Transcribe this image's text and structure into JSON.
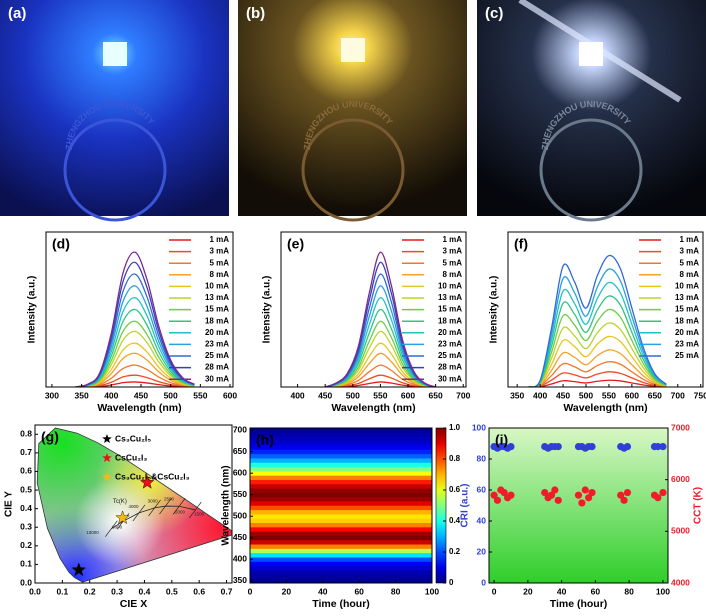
{
  "photos": {
    "labels": [
      "(a)",
      "(b)",
      "(c)"
    ],
    "logo_text": "ZHENGZHOU UNIVERSITY"
  },
  "chart_data": [
    {
      "type": "line",
      "title": "(d)",
      "xlabel": "Wavelength (nm)",
      "ylabel": "Intensity (a.u.)",
      "xlim": [
        290,
        605
      ],
      "xticks": [
        300,
        350,
        400,
        450,
        500,
        550,
        600
      ],
      "ylim": [
        0,
        92
      ],
      "x": [
        340,
        360,
        380,
        400,
        420,
        440,
        460,
        480,
        500,
        520,
        540
      ],
      "series": [
        {
          "name": "1 mA",
          "color": "#e41a1c",
          "values": [
            0,
            0.1,
            0.3,
            1.2,
            2.6,
            3,
            2.4,
            1.4,
            0.6,
            0.2,
            0.1
          ]
        },
        {
          "name": "3 mA",
          "color": "#ee4a25",
          "values": [
            0,
            0.1,
            0.7,
            2.8,
            6,
            7,
            5.6,
            3.2,
            1.4,
            0.5,
            0.1
          ]
        },
        {
          "name": "5 mA",
          "color": "#f4762a",
          "values": [
            0,
            0.3,
            1.3,
            5.2,
            11,
            13,
            10.4,
            5.9,
            2.6,
            0.9,
            0.3
          ]
        },
        {
          "name": "8 mA",
          "color": "#f4a02a",
          "values": [
            0,
            0.4,
            2,
            8,
            17,
            20,
            16,
            9,
            4,
            1.4,
            0.4
          ]
        },
        {
          "name": "10 mA",
          "color": "#e9c51f",
          "values": [
            0,
            0.5,
            2.6,
            10.4,
            22.1,
            26,
            20.8,
            11.7,
            5.2,
            1.8,
            0.5
          ]
        },
        {
          "name": "13 mA",
          "color": "#b9d52d",
          "values": [
            0,
            0.7,
            3.3,
            13.2,
            28,
            33,
            26.4,
            14.9,
            6.6,
            2.3,
            0.7
          ]
        },
        {
          "name": "15 mA",
          "color": "#6ccf45",
          "values": [
            0,
            0.8,
            3.9,
            15.6,
            33.2,
            39,
            31.2,
            17.6,
            7.8,
            2.7,
            0.8
          ]
        },
        {
          "name": "18 mA",
          "color": "#2fc583",
          "values": [
            0,
            0.9,
            4.6,
            18.4,
            39.1,
            46,
            36.8,
            20.7,
            9.2,
            3.2,
            0.9
          ]
        },
        {
          "name": "20 mA",
          "color": "#22c2c4",
          "values": [
            0,
            1.1,
            5.3,
            21.2,
            45,
            53,
            42.4,
            23.9,
            10.6,
            3.7,
            1.1
          ]
        },
        {
          "name": "23 mA",
          "color": "#2b9fe0",
          "values": [
            0,
            1.2,
            6,
            24,
            51,
            60,
            48,
            27,
            12,
            4.2,
            1.2
          ]
        },
        {
          "name": "25 mA",
          "color": "#3169d6",
          "values": [
            0,
            1.3,
            6.7,
            26.8,
            57,
            67,
            53.6,
            30.2,
            13.4,
            4.7,
            1.3
          ]
        },
        {
          "name": "28 mA",
          "color": "#3b3cb8",
          "values": [
            0,
            1.5,
            7.4,
            29.6,
            62.9,
            74,
            59.2,
            33.3,
            14.8,
            5.2,
            1.5
          ]
        },
        {
          "name": "30 mA",
          "color": "#7a2b8e",
          "values": [
            0,
            1.6,
            8,
            32,
            68,
            80,
            64,
            36,
            16,
            5.6,
            1.6
          ]
        }
      ]
    },
    {
      "type": "line",
      "title": "(e)",
      "xlabel": "Wavelength (nm)",
      "ylabel": "Intensity (a.u.)",
      "xlim": [
        370,
        705
      ],
      "xticks": [
        400,
        450,
        500,
        550,
        600,
        650,
        700
      ],
      "ylim": [
        0,
        92
      ],
      "x": [
        450,
        470,
        490,
        510,
        530,
        550,
        570,
        590,
        610,
        630,
        650
      ],
      "series": [
        {
          "name": "1 mA",
          "color": "#e41a1c",
          "values": [
            0,
            0.1,
            0.3,
            0.9,
            2.1,
            3,
            2.3,
            1.1,
            0.4,
            0.1,
            0
          ]
        },
        {
          "name": "3 mA",
          "color": "#ee4a25",
          "values": [
            0,
            0.2,
            0.7,
            2.1,
            4.9,
            7,
            5.3,
            2.5,
            0.8,
            0.2,
            0
          ]
        },
        {
          "name": "5 mA",
          "color": "#f4762a",
          "values": [
            0,
            0.4,
            1.3,
            3.9,
            9.1,
            13,
            9.8,
            4.6,
            1.6,
            0.4,
            0
          ]
        },
        {
          "name": "8 mA",
          "color": "#f4a02a",
          "values": [
            0,
            0.6,
            2,
            6,
            14,
            20,
            15,
            7,
            2.4,
            0.6,
            0
          ]
        },
        {
          "name": "10 mA",
          "color": "#e9c51f",
          "values": [
            0,
            0.8,
            2.6,
            7.8,
            18.2,
            26,
            19.5,
            9.1,
            3.1,
            0.8,
            0
          ]
        },
        {
          "name": "13 mA",
          "color": "#b9d52d",
          "values": [
            0,
            1,
            3.3,
            9.9,
            23.1,
            33,
            24.8,
            11.6,
            4,
            1,
            0
          ]
        },
        {
          "name": "15 mA",
          "color": "#6ccf45",
          "values": [
            0,
            1.2,
            3.9,
            11.7,
            27.3,
            39,
            29.3,
            13.7,
            4.7,
            1.2,
            0
          ]
        },
        {
          "name": "18 mA",
          "color": "#2fc583",
          "values": [
            0,
            1.4,
            4.6,
            13.8,
            32.2,
            46,
            34.5,
            16.1,
            5.5,
            1.4,
            0
          ]
        },
        {
          "name": "20 mA",
          "color": "#22c2c4",
          "values": [
            0,
            1.6,
            5.3,
            15.9,
            37.1,
            53,
            39.8,
            18.6,
            6.4,
            1.6,
            0
          ]
        },
        {
          "name": "23 mA",
          "color": "#2b9fe0",
          "values": [
            0,
            1.8,
            6,
            18,
            42,
            60,
            45,
            21,
            7.2,
            1.8,
            0
          ]
        },
        {
          "name": "25 mA",
          "color": "#3169d6",
          "values": [
            0,
            2,
            6.7,
            20.1,
            46.9,
            67,
            50.3,
            23.5,
            8,
            2,
            0
          ]
        },
        {
          "name": "28 mA",
          "color": "#3b3cb8",
          "values": [
            0,
            2.2,
            7.4,
            22.2,
            51.8,
            74,
            55.5,
            25.9,
            8.9,
            2.2,
            0
          ]
        },
        {
          "name": "30 mA",
          "color": "#7a2b8e",
          "values": [
            0,
            2.4,
            8,
            24,
            56,
            80,
            60,
            28,
            9.6,
            2.4,
            0
          ]
        }
      ]
    },
    {
      "type": "line",
      "title": "(f)",
      "xlabel": "Wavelength (nm)",
      "ylabel": "Intensity (a.u.)",
      "xlim": [
        330,
        755
      ],
      "xticks": [
        350,
        400,
        450,
        500,
        550,
        600,
        650,
        700,
        750
      ],
      "ylim": [
        0,
        92
      ],
      "x": [
        375,
        400,
        425,
        450,
        475,
        500,
        525,
        550,
        575,
        600,
        625,
        650,
        675
      ],
      "series": [
        {
          "name": "1 mA",
          "color": "#e41a1c",
          "values": [
            0,
            0.2,
            1.8,
            3.7,
            3.2,
            2.4,
            3.4,
            4,
            3.6,
            2.4,
            1.2,
            0.4,
            0.1
          ]
        },
        {
          "name": "3 mA",
          "color": "#ee4a25",
          "values": [
            0,
            0.5,
            4.1,
            8.3,
            7.2,
            5.4,
            7.7,
            9,
            8.1,
            5.4,
            2.7,
            0.9,
            0.2
          ]
        },
        {
          "name": "5 mA",
          "color": "#f4762a",
          "values": [
            0,
            0.8,
            6.8,
            13.8,
            12,
            9,
            12.8,
            15,
            13.5,
            9,
            4.5,
            1.5,
            0.3
          ]
        },
        {
          "name": "8 mA",
          "color": "#f4a02a",
          "values": [
            0,
            1.1,
            9.9,
            20.2,
            17.6,
            13.2,
            18.7,
            22,
            19.8,
            13.2,
            6.6,
            2.2,
            0.4
          ]
        },
        {
          "name": "10 mA",
          "color": "#e9c51f",
          "values": [
            0,
            1.5,
            13.5,
            27.6,
            24,
            18,
            25.5,
            30,
            27,
            18,
            9,
            3,
            0.6
          ]
        },
        {
          "name": "13 mA",
          "color": "#b9d52d",
          "values": [
            0,
            1.9,
            17.1,
            35,
            30.4,
            22.8,
            32.3,
            38,
            34.2,
            22.8,
            11.4,
            3.8,
            0.8
          ]
        },
        {
          "name": "15 mA",
          "color": "#6ccf45",
          "values": [
            0,
            2.3,
            20.7,
            42.3,
            36.8,
            27.6,
            39.1,
            46,
            41.4,
            27.6,
            13.8,
            4.6,
            0.9
          ]
        },
        {
          "name": "18 mA",
          "color": "#2fc583",
          "values": [
            0,
            2.7,
            24.3,
            49.7,
            43.2,
            32.4,
            45.9,
            54,
            48.6,
            32.4,
            16.2,
            5.4,
            1.1
          ]
        },
        {
          "name": "20 mA",
          "color": "#22c2c4",
          "values": [
            0,
            3.1,
            27.9,
            57,
            49.6,
            37.2,
            52.7,
            62,
            55.8,
            37.2,
            18.6,
            6.2,
            1.2
          ]
        },
        {
          "name": "23 mA",
          "color": "#2b9fe0",
          "values": [
            0,
            3.5,
            31.5,
            64.4,
            56,
            42,
            59.5,
            70,
            63,
            42,
            21,
            7,
            1.4
          ]
        },
        {
          "name": "25 mA",
          "color": "#3169d6",
          "values": [
            0,
            3.9,
            35.1,
            71.8,
            62.4,
            46.8,
            66.3,
            78,
            70.2,
            46.8,
            23.4,
            7.8,
            1.6
          ]
        }
      ]
    },
    {
      "type": "cie",
      "title": "(g)",
      "xlabel": "CIE X",
      "ylabel": "CIE Y",
      "xlim": [
        0,
        0.72
      ],
      "ylim": [
        0,
        0.85
      ],
      "xticks": [
        {
          "value": 0,
          "label": "0.0"
        },
        {
          "value": 0.1,
          "label": "0.1"
        },
        {
          "value": 0.2,
          "label": "0.2"
        },
        {
          "value": 0.3,
          "label": "0.3"
        },
        {
          "value": 0.4,
          "label": "0.4"
        },
        {
          "value": 0.5,
          "label": "0.5"
        },
        {
          "value": 0.6,
          "label": "0.6"
        },
        {
          "value": 0.7,
          "label": "0.7"
        }
      ],
      "yticks": [
        {
          "value": 0,
          "label": "0.0"
        },
        {
          "value": 0.1,
          "label": "0.1"
        },
        {
          "value": 0.2,
          "label": "0.2"
        },
        {
          "value": 0.3,
          "label": "0.3"
        },
        {
          "value": 0.4,
          "label": "0.4"
        },
        {
          "value": 0.5,
          "label": "0.5"
        },
        {
          "value": 0.6,
          "label": "0.6"
        },
        {
          "value": 0.7,
          "label": "0.7"
        },
        {
          "value": 0.8,
          "label": "0.8"
        }
      ],
      "annotations": [
        "Tc(K)",
        "10000",
        "6000",
        "4000",
        "3000",
        "2500",
        "2000",
        "1500"
      ],
      "series": [
        {
          "name": "Cs₃Cu₂I₅",
          "color": "#000000",
          "marker": "star",
          "x": [
            0.16
          ],
          "values": [
            0.07
          ]
        },
        {
          "name": "CsCu₂I₃",
          "color": "#e8101a",
          "marker": "star",
          "x": [
            0.41
          ],
          "values": [
            0.54
          ]
        },
        {
          "name": "Cs₃Cu₂I₅&CsCu₂I₃",
          "color": "#f5b81c",
          "marker": "star",
          "x": [
            0.32
          ],
          "values": [
            0.35
          ]
        }
      ]
    },
    {
      "type": "heatmap",
      "title": "(h)",
      "xlabel": "Time (hour)",
      "ylabel": "Wavelength (nm)",
      "xlim": [
        0,
        100
      ],
      "xticks": [
        0,
        20,
        40,
        60,
        80,
        100
      ],
      "ylim": [
        345,
        705
      ],
      "yticks": [
        350,
        400,
        450,
        500,
        550,
        600,
        650,
        700
      ],
      "zlim": [
        0,
        1
      ],
      "zticks": [
        0,
        0.2,
        0.4,
        0.6,
        0.8,
        {
          "value": 1,
          "label": "1.0"
        }
      ],
      "y": [
        350,
        360,
        370,
        380,
        390,
        400,
        410,
        420,
        430,
        440,
        450,
        460,
        470,
        480,
        490,
        500,
        510,
        520,
        530,
        540,
        550,
        560,
        570,
        580,
        590,
        600,
        610,
        620,
        630,
        640,
        650,
        660,
        670,
        680,
        690,
        700
      ],
      "values": [
        0.02,
        0.03,
        0.05,
        0.08,
        0.12,
        0.2,
        0.35,
        0.55,
        0.75,
        0.92,
        1,
        0.97,
        0.87,
        0.75,
        0.67,
        0.65,
        0.7,
        0.8,
        0.9,
        0.97,
        1,
        0.98,
        0.93,
        0.85,
        0.75,
        0.62,
        0.5,
        0.4,
        0.3,
        0.22,
        0.16,
        0.11,
        0.08,
        0.06,
        0.04,
        0.03
      ]
    },
    {
      "type": "scatter",
      "title": "(i)",
      "xlabel": "Time (hour)",
      "ylabel": "CRI (a.u.)",
      "y2label": "CCT (K)",
      "xlim": [
        -3,
        103
      ],
      "xticks": [
        0,
        20,
        40,
        60,
        80,
        100
      ],
      "ylim": [
        0,
        100
      ],
      "yticks": [
        0,
        20,
        40,
        60,
        80,
        100
      ],
      "y2lim": [
        4000,
        7000
      ],
      "y2ticks": [
        4000,
        5000,
        6000,
        7000
      ],
      "x": [
        0,
        2,
        4,
        6,
        8,
        10,
        30,
        32,
        34,
        36,
        38,
        50,
        52,
        54,
        56,
        58,
        75,
        77,
        79,
        95,
        97,
        100
      ],
      "series": [
        {
          "color": "#2f3fd8",
          "axis": "y",
          "values": [
            88,
            87,
            88,
            88,
            87,
            88,
            88,
            87,
            88,
            88,
            88,
            88,
            88,
            87,
            88,
            88,
            88,
            87,
            88,
            88,
            88,
            88
          ]
        },
        {
          "color": "#ef1d2a",
          "axis": "y2",
          "values": [
            5700,
            5600,
            5800,
            5750,
            5650,
            5700,
            5750,
            5650,
            5700,
            5800,
            5600,
            5700,
            5550,
            5800,
            5650,
            5750,
            5700,
            5600,
            5750,
            5700,
            5650,
            5750
          ]
        }
      ]
    }
  ]
}
